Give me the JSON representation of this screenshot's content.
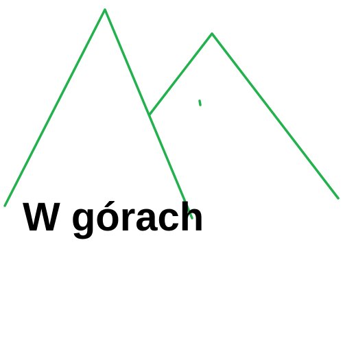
{
  "caption": {
    "text": "W górach"
  },
  "drawing": {
    "stroke_color": "#22b14c",
    "shapes": [
      "left-mountain",
      "right-mountain",
      "small-mark"
    ]
  },
  "colors": {
    "background": "#ffffff",
    "text": "#000000"
  }
}
